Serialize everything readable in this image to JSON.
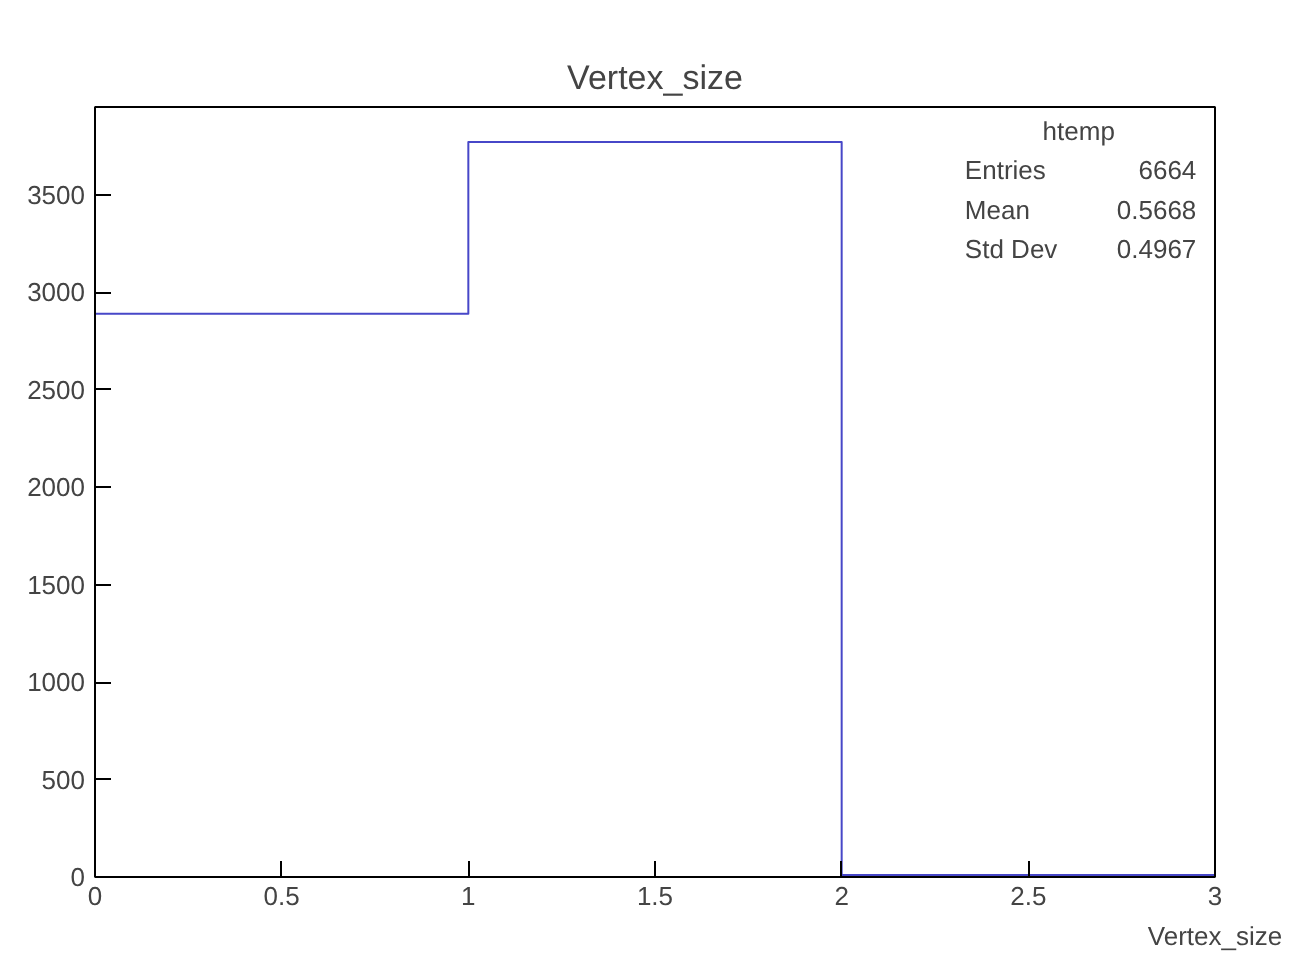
{
  "chart_data": {
    "type": "histogram",
    "title": "Vertex_size",
    "xlabel": "Vertex_size",
    "bins": [
      0,
      1,
      2,
      3
    ],
    "values": [
      2890,
      3770,
      10
    ],
    "color": "#4747c8",
    "xlim": [
      0,
      3
    ],
    "xticks": [
      0,
      0.5,
      1,
      1.5,
      2,
      2.5,
      3
    ],
    "ylim": [
      0,
      3950
    ],
    "yticks": [
      0,
      500,
      1000,
      1500,
      2000,
      2500,
      3000,
      3500
    ],
    "grid": false,
    "annotations": [
      "htemp",
      "Entries",
      "6664",
      "Mean",
      "0.5668",
      "Std Dev",
      "0.4967"
    ]
  }
}
